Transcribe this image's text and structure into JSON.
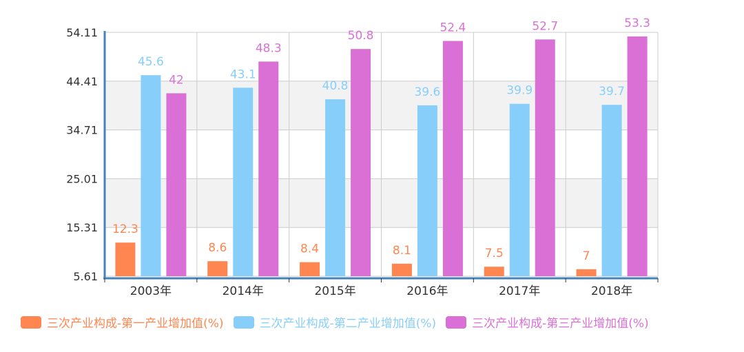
{
  "chart_data": {
    "type": "bar",
    "categories": [
      "2003年",
      "2014年",
      "2015年",
      "2016年",
      "2017年",
      "2018年"
    ],
    "series": [
      {
        "name": "三次产业构成-第一产业增加值(%)",
        "color": "#ff8650",
        "label_color": "#ff8650",
        "values": [
          12.3,
          8.6,
          8.4,
          8.1,
          7.5,
          7
        ]
      },
      {
        "name": "三次产业构成-第二产业增加值(%)",
        "color": "#87cefa",
        "label_color": "#87cefa",
        "values": [
          45.6,
          43.1,
          40.8,
          39.6,
          39.9,
          39.7
        ]
      },
      {
        "name": "三次产业构成-第三产业增加值(%)",
        "color": "#da70d6",
        "label_color": "#da70d6",
        "values": [
          42,
          48.3,
          50.8,
          52.4,
          52.7,
          53.3
        ]
      }
    ],
    "yticks": [
      "5.61",
      "15.31",
      "25.01",
      "34.71",
      "44.41",
      "54.11"
    ],
    "ylim": [
      5.61,
      54.11
    ],
    "grid": true,
    "legend_position": "bottom",
    "colors": {
      "axis": "#4682b4",
      "grid": "#cccccc",
      "band": "#f2f2f2"
    }
  }
}
